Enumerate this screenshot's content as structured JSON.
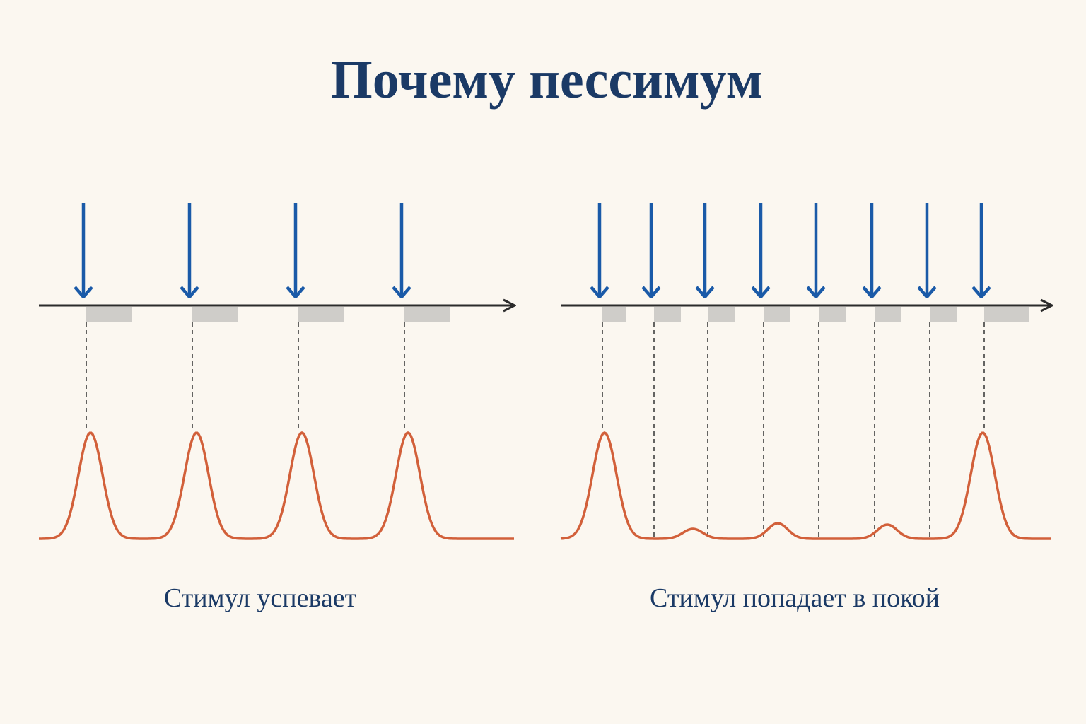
{
  "title": "Почему пессимум",
  "panels": [
    {
      "caption": "Стимул успевает"
    },
    {
      "caption": "Стимул попадает в покой"
    }
  ]
}
